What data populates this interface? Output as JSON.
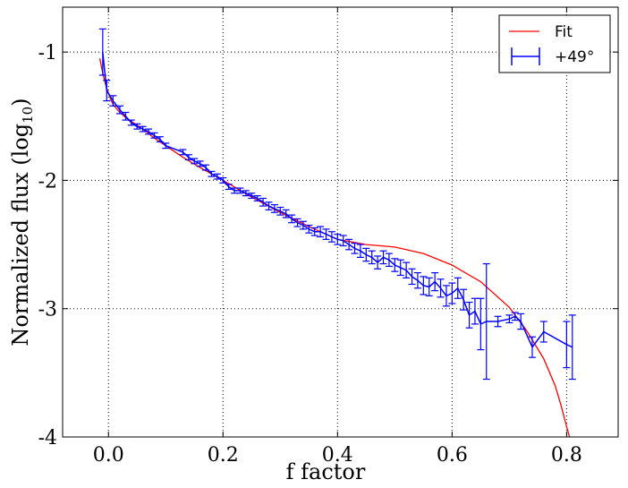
{
  "chart_data": {
    "type": "line",
    "xlabel": "f factor",
    "ylabel": "Normalized flux (log",
    "ylabel_sub": "10",
    "ylabel_close": ")",
    "xlim": [
      -0.08,
      0.89
    ],
    "ylim": [
      -4.0,
      -0.65
    ],
    "xticks": [
      0.0,
      0.2,
      0.4,
      0.6,
      0.8
    ],
    "xtick_labels": [
      "0.0",
      "0.2",
      "0.4",
      "0.6",
      "0.8"
    ],
    "yticks": [
      -4,
      -3,
      -2,
      -1
    ],
    "ytick_labels": [
      "-4",
      "-3",
      "-2",
      "-1"
    ],
    "grid": true,
    "legend": {
      "placement": "top-right",
      "entries": [
        "Fit",
        "+49°"
      ]
    },
    "colors": {
      "fit": "#ff0000",
      "data": "#0000ff"
    },
    "series": [
      {
        "name": "Fit",
        "kind": "line",
        "x": [
          -0.015,
          -0.012,
          -0.008,
          -0.004,
          0.0,
          0.005,
          0.01,
          0.02,
          0.03,
          0.04,
          0.06,
          0.08,
          0.1,
          0.13,
          0.16,
          0.2,
          0.25,
          0.3,
          0.35,
          0.4,
          0.45,
          0.5,
          0.55,
          0.6,
          0.65,
          0.7,
          0.73,
          0.76,
          0.78,
          0.79,
          0.8,
          0.805
        ],
        "y": [
          -1.05,
          -1.12,
          -1.2,
          -1.27,
          -1.32,
          -1.38,
          -1.42,
          -1.47,
          -1.51,
          -1.54,
          -1.6,
          -1.67,
          -1.73,
          -1.82,
          -1.9,
          -2.0,
          -2.13,
          -2.25,
          -2.36,
          -2.46,
          -2.5,
          -2.52,
          -2.57,
          -2.66,
          -2.79,
          -2.99,
          -3.17,
          -3.39,
          -3.6,
          -3.75,
          -3.92,
          -4.0
        ]
      },
      {
        "name": "+49°",
        "kind": "errorbar",
        "x": [
          -0.01,
          -0.003,
          0.008,
          0.02,
          0.03,
          0.04,
          0.05,
          0.06,
          0.07,
          0.08,
          0.09,
          0.1,
          0.13,
          0.14,
          0.15,
          0.16,
          0.17,
          0.18,
          0.19,
          0.2,
          0.21,
          0.22,
          0.23,
          0.24,
          0.25,
          0.26,
          0.27,
          0.28,
          0.29,
          0.3,
          0.31,
          0.32,
          0.33,
          0.34,
          0.35,
          0.36,
          0.37,
          0.38,
          0.39,
          0.4,
          0.41,
          0.42,
          0.43,
          0.44,
          0.45,
          0.46,
          0.47,
          0.48,
          0.49,
          0.5,
          0.51,
          0.52,
          0.53,
          0.54,
          0.55,
          0.56,
          0.57,
          0.58,
          0.59,
          0.6,
          0.61,
          0.62,
          0.63,
          0.64,
          0.65,
          0.66,
          0.68,
          0.7,
          0.71,
          0.72,
          0.74,
          0.76,
          0.8,
          0.81
        ],
        "y": [
          -1.0,
          -1.3,
          -1.38,
          -1.45,
          -1.5,
          -1.55,
          -1.58,
          -1.6,
          -1.62,
          -1.65,
          -1.68,
          -1.73,
          -1.78,
          -1.82,
          -1.85,
          -1.87,
          -1.9,
          -1.95,
          -1.97,
          -2.0,
          -2.05,
          -2.08,
          -2.08,
          -2.1,
          -2.12,
          -2.14,
          -2.17,
          -2.2,
          -2.22,
          -2.24,
          -2.26,
          -2.3,
          -2.33,
          -2.35,
          -2.38,
          -2.4,
          -2.4,
          -2.42,
          -2.44,
          -2.46,
          -2.47,
          -2.5,
          -2.53,
          -2.55,
          -2.58,
          -2.6,
          -2.64,
          -2.6,
          -2.62,
          -2.66,
          -2.68,
          -2.7,
          -2.75,
          -2.78,
          -2.82,
          -2.83,
          -2.79,
          -2.84,
          -2.9,
          -2.88,
          -2.84,
          -2.93,
          -3.05,
          -3.02,
          -3.12,
          -3.1,
          -3.1,
          -3.08,
          -3.06,
          -3.1,
          -3.3,
          -3.18,
          -3.28,
          -3.3
        ],
        "err": [
          0.18,
          0.08,
          0.04,
          0.03,
          0.03,
          0.02,
          0.02,
          0.02,
          0.02,
          0.02,
          0.02,
          0.02,
          0.02,
          0.02,
          0.02,
          0.02,
          0.02,
          0.02,
          0.02,
          0.02,
          0.02,
          0.02,
          0.02,
          0.02,
          0.02,
          0.02,
          0.03,
          0.03,
          0.03,
          0.03,
          0.03,
          0.03,
          0.03,
          0.03,
          0.03,
          0.03,
          0.04,
          0.04,
          0.04,
          0.04,
          0.04,
          0.04,
          0.04,
          0.05,
          0.05,
          0.05,
          0.05,
          0.05,
          0.05,
          0.05,
          0.06,
          0.06,
          0.06,
          0.06,
          0.07,
          0.07,
          0.07,
          0.07,
          0.08,
          0.08,
          0.08,
          0.08,
          0.1,
          0.1,
          0.2,
          0.45,
          0.04,
          0.03,
          0.03,
          0.06,
          0.08,
          0.08,
          0.18,
          0.25
        ]
      }
    ]
  }
}
